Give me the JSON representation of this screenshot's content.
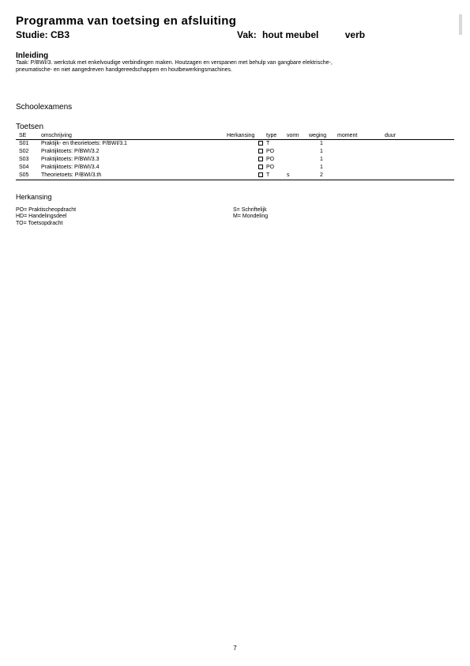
{
  "title": "Programma van toetsing en afsluiting",
  "studie_label": "Studie:",
  "studie_value": "CB3",
  "vak_label": "Vak:",
  "vak_value": "hout meubel",
  "verb": "verb",
  "inleiding": {
    "heading": "Inleiding",
    "line1": "Taak: P/BWI/3. werkstuk met enkelvoudige verbindingen maken. Houtzagen en verspanen met behulp van gangbare elektrische-,",
    "line2": "pneumatische- en niet aangedreven handgereedschappen en houtbewerkingsmachines."
  },
  "schoolexamens": "Schoolexamens",
  "toetsen_heading": "Toetsen",
  "columns": {
    "se": "SE",
    "oms": "omschrijving",
    "herk": "Herkansing",
    "type": "type",
    "vorm": "vorm",
    "weging": "weging",
    "moment": "moment",
    "duur": "duur"
  },
  "rows": [
    {
      "se": "S01",
      "oms": "Praktijk- en theorietoets: P/BWI/3.1",
      "type": "T",
      "vorm": "",
      "weging": "1"
    },
    {
      "se": "S02",
      "oms": "Praktijktoets: P/BWI/3.2",
      "type": "PO",
      "vorm": "",
      "weging": "1"
    },
    {
      "se": "S03",
      "oms": "Praktijktoets: P/BWI/3.3",
      "type": "PO",
      "vorm": "",
      "weging": "1"
    },
    {
      "se": "S04",
      "oms": "Praktijktoets: P/BWI/3.4",
      "type": "PO",
      "vorm": "",
      "weging": "1"
    },
    {
      "se": "S05",
      "oms": "Theorietoets: P/BWI/3.th",
      "type": "T",
      "vorm": "s",
      "weging": "2"
    }
  ],
  "herkansing_heading": "Herkansing",
  "legend": {
    "po": "PO= Praktischeopdracht",
    "hd": "HD= Handelingsdeel",
    "to": "TO= Toetsopdracht",
    "s": "S= Schriftelijk",
    "m": "M= Mondeling"
  },
  "page_number": "7"
}
